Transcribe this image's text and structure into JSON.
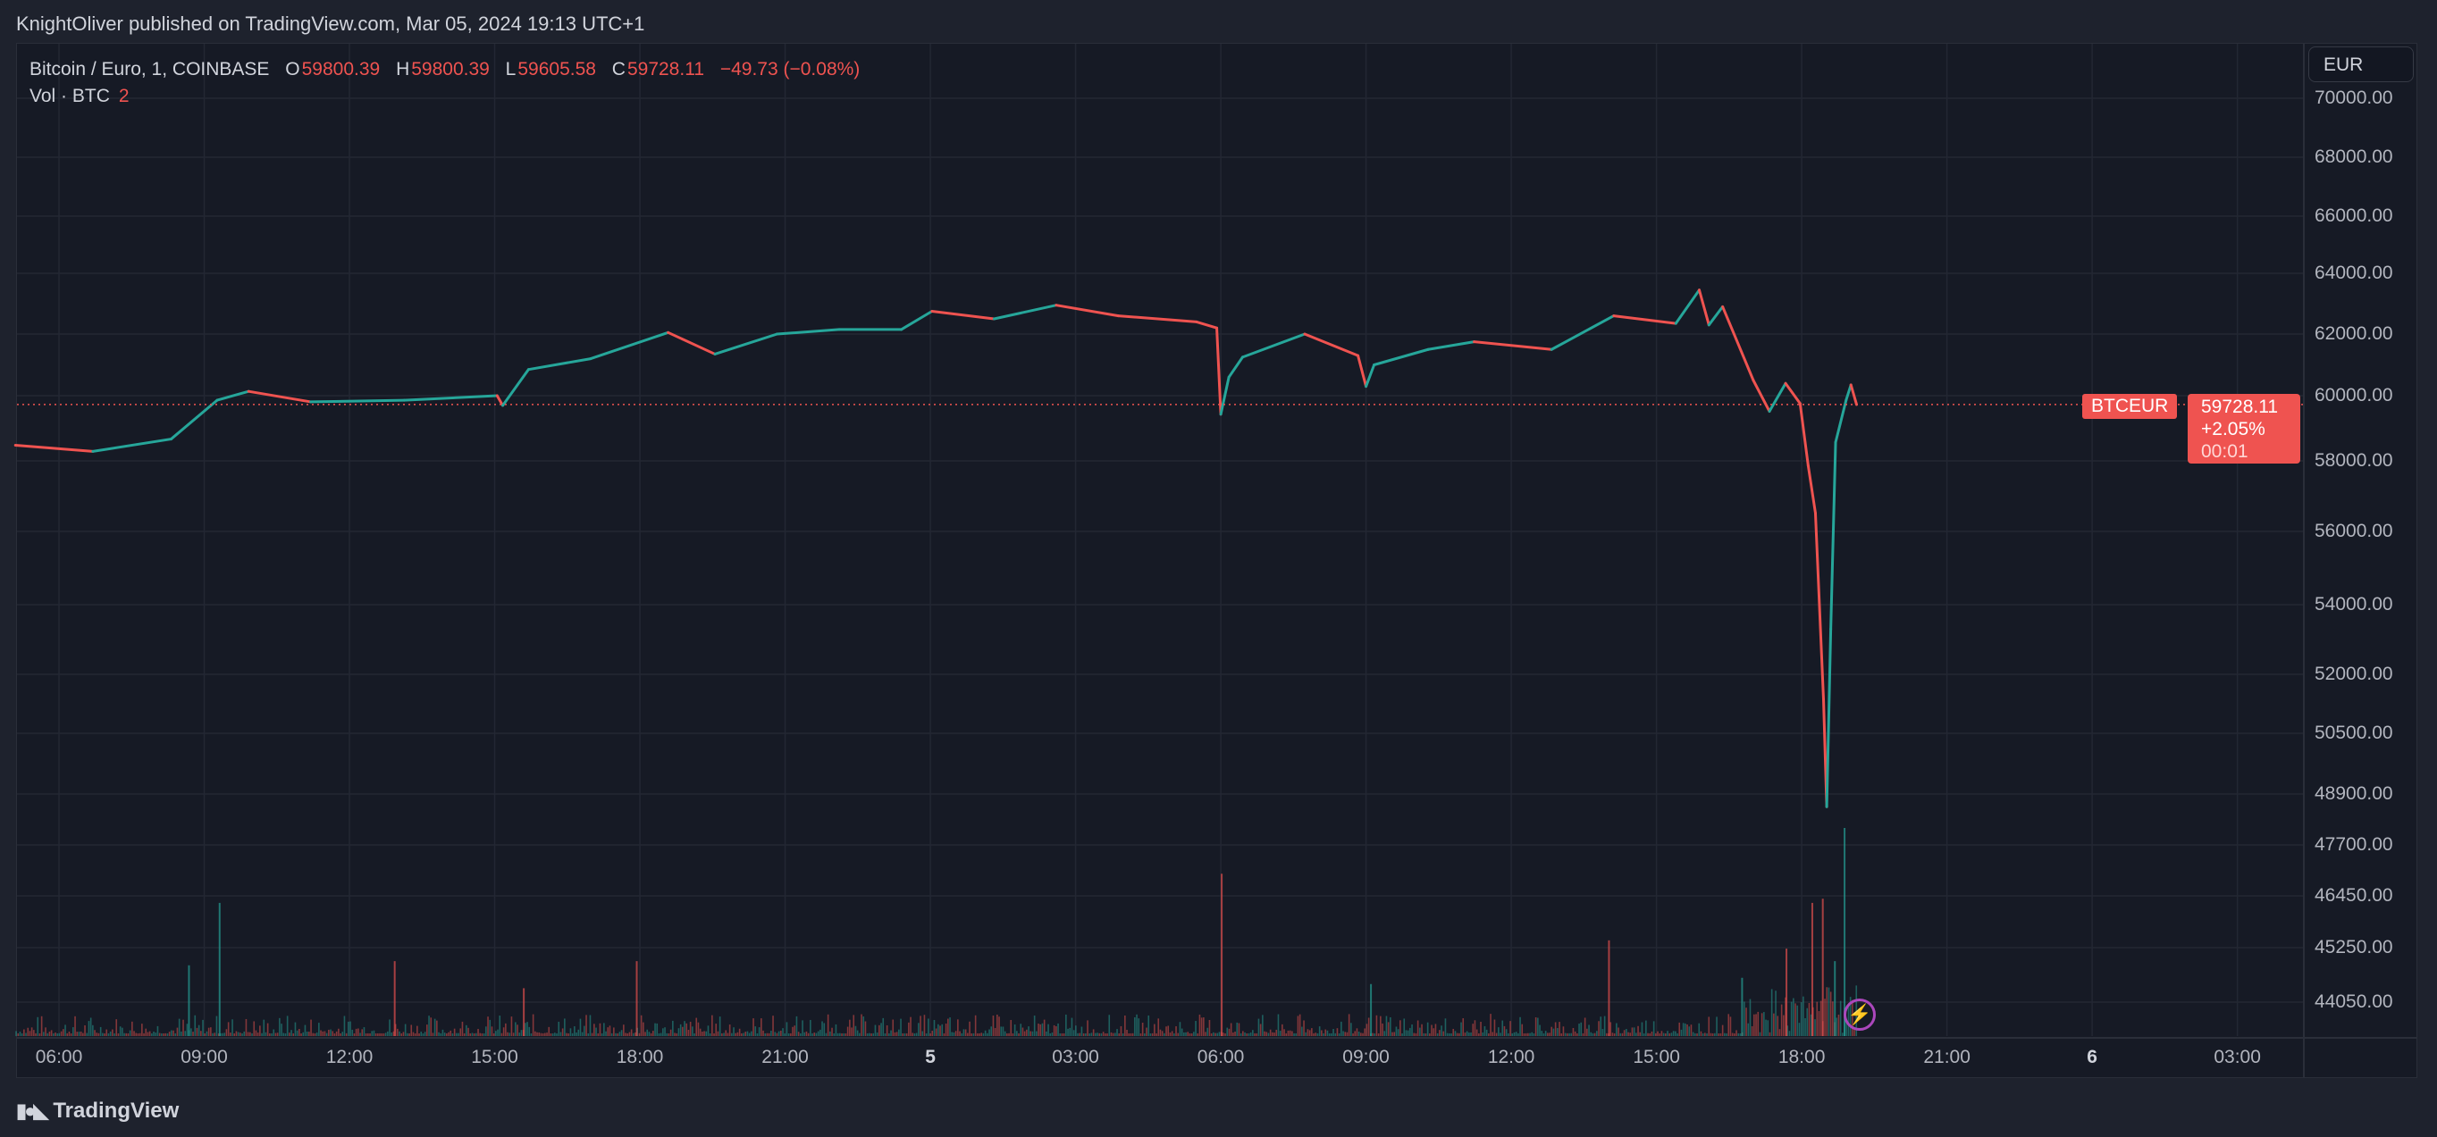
{
  "header": {
    "published": "KnightOliver published on TradingView.com, Mar 05, 2024 19:13 UTC+1"
  },
  "legend": {
    "symbol": "Bitcoin / Euro, 1, COINBASE",
    "o_label": "O",
    "o": "59800.39",
    "h_label": "H",
    "h": "59800.39",
    "l_label": "L",
    "l": "59605.58",
    "c_label": "C",
    "c": "59728.11",
    "change": "−49.73 (−0.08%)"
  },
  "volume_legend": {
    "label": "Vol · BTC",
    "value": "2"
  },
  "currency_button": "EUR",
  "badges": {
    "symbol": "BTCEUR",
    "price": "59728.11",
    "change": "+2.05%",
    "countdown": "00:01"
  },
  "colors": {
    "up": "#26a69a",
    "down": "#ef5350",
    "background": "#161a25",
    "grid": "#232733",
    "event_icon": "#ab47bc"
  },
  "icons": {
    "event": "lightning-bolt-icon",
    "logo": "tradingview-logo-icon"
  },
  "logo_text": "TradingView",
  "chart_data": {
    "type": "line",
    "y_scale": "nonlinear (percent/log-like), ticks as shown",
    "grid": true,
    "yticks": [
      "70000.00",
      "68000.00",
      "66000.00",
      "64000.00",
      "62000.00",
      "60000.00",
      "58000.00",
      "56000.00",
      "54000.00",
      "52000.00",
      "50500.00",
      "48900.00",
      "47700.00",
      "46450.00",
      "45250.00",
      "44050.00"
    ],
    "xticks": [
      {
        "label": "06:00",
        "t": "Mar 4 06:00"
      },
      {
        "label": "09:00",
        "t": "Mar 4 09:00"
      },
      {
        "label": "12:00",
        "t": "Mar 4 12:00"
      },
      {
        "label": "15:00",
        "t": "Mar 4 15:00"
      },
      {
        "label": "18:00",
        "t": "Mar 4 18:00"
      },
      {
        "label": "21:00",
        "t": "Mar 4 21:00"
      },
      {
        "label": "5",
        "t": "Mar 5 00:00",
        "bold": true
      },
      {
        "label": "03:00",
        "t": "Mar 5 03:00"
      },
      {
        "label": "06:00",
        "t": "Mar 5 06:00"
      },
      {
        "label": "09:00",
        "t": "Mar 5 09:00"
      },
      {
        "label": "12:00",
        "t": "Mar 5 12:00"
      },
      {
        "label": "15:00",
        "t": "Mar 5 15:00"
      },
      {
        "label": "18:00",
        "t": "Mar 5 18:00"
      },
      {
        "label": "21:00",
        "t": "Mar 5 21:00"
      },
      {
        "label": "6",
        "t": "Mar 6 00:00",
        "bold": true
      },
      {
        "label": "03:00",
        "t": "Mar 6 03:00"
      }
    ],
    "last_price": 59728.11,
    "price": [
      [
        "Mar 4 05:06",
        58480
      ],
      [
        "Mar 4 06:42",
        58290
      ],
      [
        "Mar 4 08:19",
        58670
      ],
      [
        "Mar 4 09:16",
        59860
      ],
      [
        "Mar 4 09:55",
        60140
      ],
      [
        "Mar 4 11:12",
        59810
      ],
      [
        "Mar 4 13:08",
        59860
      ],
      [
        "Mar 4 15:03",
        60000
      ],
      [
        "Mar 4 15:10",
        59700
      ],
      [
        "Mar 4 15:42",
        60850
      ],
      [
        "Mar 4 16:59",
        61200
      ],
      [
        "Mar 4 18:35",
        62050
      ],
      [
        "Mar 4 19:33",
        61350
      ],
      [
        "Mar 4 20:50",
        62000
      ],
      [
        "Mar 4 22:07",
        62150
      ],
      [
        "Mar 4 23:24",
        62150
      ],
      [
        "Mar 5 00:02",
        62750
      ],
      [
        "Mar 5 01:19",
        62500
      ],
      [
        "Mar 5 02:36",
        62950
      ],
      [
        "Mar 5 03:53",
        62600
      ],
      [
        "Mar 5 05:30",
        62400
      ],
      [
        "Mar 5 05:55",
        62200
      ],
      [
        "Mar 5 06:00",
        59430
      ],
      [
        "Mar 5 06:10",
        60600
      ],
      [
        "Mar 5 06:27",
        61250
      ],
      [
        "Mar 5 07:44",
        62000
      ],
      [
        "Mar 5 08:50",
        61300
      ],
      [
        "Mar 5 09:00",
        60300
      ],
      [
        "Mar 5 09:10",
        61000
      ],
      [
        "Mar 5 10:17",
        61500
      ],
      [
        "Mar 5 11:14",
        61750
      ],
      [
        "Mar 5 12:50",
        61500
      ],
      [
        "Mar 5 14:07",
        62600
      ],
      [
        "Mar 5 15:24",
        62350
      ],
      [
        "Mar 5 15:53",
        63450
      ],
      [
        "Mar 5 16:05",
        62300
      ],
      [
        "Mar 5 16:22",
        62900
      ],
      [
        "Mar 5 17:00",
        60500
      ],
      [
        "Mar 5 17:20",
        59520
      ],
      [
        "Mar 5 17:40",
        60400
      ],
      [
        "Mar 5 17:58",
        59760
      ],
      [
        "Mar 5 18:08",
        57870
      ],
      [
        "Mar 5 18:17",
        56520
      ],
      [
        "Mar 5 18:27",
        51370
      ],
      [
        "Mar 5 18:31",
        48600
      ],
      [
        "Mar 5 18:36",
        53300
      ],
      [
        "Mar 5 18:42",
        58570
      ],
      [
        "Mar 5 18:55",
        59860
      ],
      [
        "Mar 5 19:01",
        60350
      ],
      [
        "Mar 5 19:08",
        59728
      ]
    ],
    "volume_relative": [
      [
        "Mar 4 08:40",
        34,
        "up"
      ],
      [
        "Mar 4 09:18",
        64,
        "up"
      ],
      [
        "Mar 4 12:55",
        36,
        "down"
      ],
      [
        "Mar 4 15:35",
        23,
        "down"
      ],
      [
        "Mar 4 17:55",
        36,
        "down"
      ],
      [
        "Mar 5 06:00",
        78,
        "down"
      ],
      [
        "Mar 5 09:05",
        25,
        "up"
      ],
      [
        "Mar 5 14:00",
        46,
        "down"
      ],
      [
        "Mar 5 16:45",
        28,
        "up"
      ],
      [
        "Mar 5 17:40",
        42,
        "down"
      ],
      [
        "Mar 5 18:12",
        64,
        "down"
      ],
      [
        "Mar 5 18:25",
        66,
        "down"
      ],
      [
        "Mar 5 18:40",
        36,
        "up"
      ],
      [
        "Mar 5 18:52",
        100,
        "up"
      ]
    ]
  }
}
